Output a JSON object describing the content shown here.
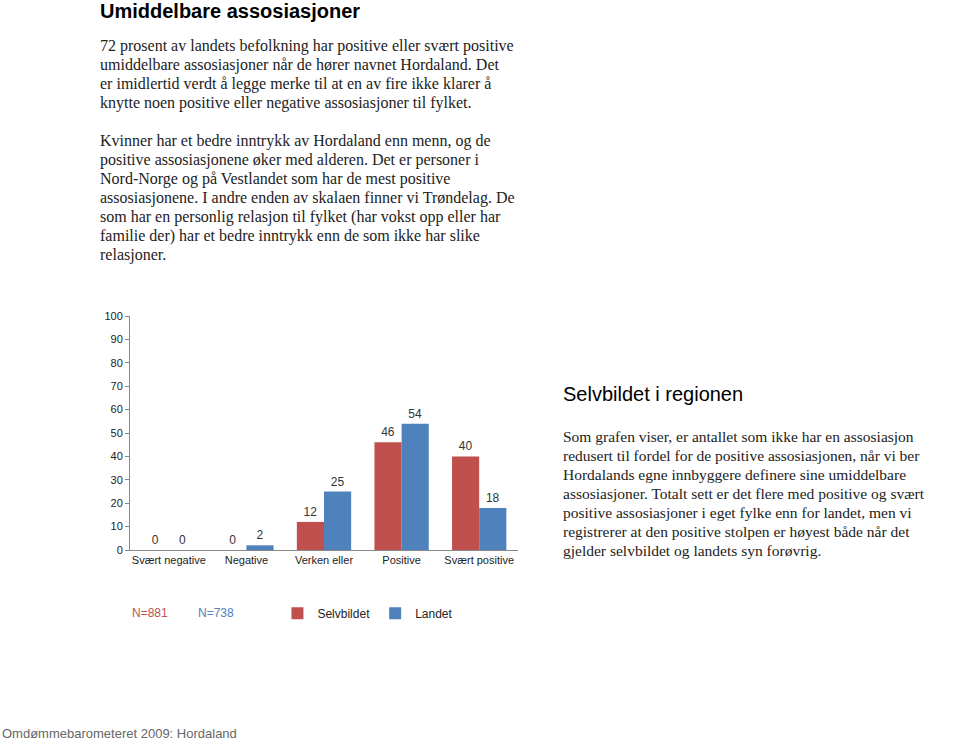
{
  "heading": "Umiddelbare assosiasjoner",
  "paragraphs": [
    "72 prosent av landets befolkning har positive eller svært positive umiddelbare assosiasjoner når de hører navnet Hordaland. Det er imidlertid verdt å legge merke til at en av fire ikke klarer å knytte noen positive eller negative assosiasjoner til fylket.",
    "Kvinner har et bedre inntrykk av Hordaland enn menn, og de positive assosiasjonene øker med alderen. Det er personer i Nord-Norge og på Vestlandet som har de mest positive assosiasjonene. I andre enden av skalaen finner vi Trøndelag. De som har en personlig relasjon til fylket (har vokst opp eller har familie der) har et bedre inntrykk enn de som ikke har slike relasjoner."
  ],
  "side_heading": "Selvbildet i regionen",
  "side_text": "Som grafen viser, er antallet som ikke har en assosiasjon redusert til fordel for de positive assosiasjonen, når vi ber Hordalands egne innbyggere definere sine umiddelbare assosiasjoner. Totalt sett er det flere med positive og svært positive assosiasjoner i eget fylke enn for landet, men vi registrerer at den positive stolpen er høyest både når det gjelder selvbildet og landets syn forøvrig.",
  "footer": "Omdømmebarometeret 2009: Hordaland",
  "chart_data": {
    "type": "bar",
    "categories": [
      "Svært negative",
      "Negative",
      "Verken eller",
      "Positive",
      "Svært positive"
    ],
    "series": [
      {
        "name": "Selvbildet",
        "color": "#c0504d",
        "values": [
          0,
          0,
          12,
          46,
          40
        ]
      },
      {
        "name": "Landet",
        "color": "#4f81bd",
        "values": [
          0,
          2,
          25,
          54,
          18
        ]
      }
    ],
    "annotations": [
      {
        "text": "N=881",
        "color": "#c0504d"
      },
      {
        "text": "N=738",
        "color": "#4f81bd"
      }
    ],
    "ylim": [
      0,
      100
    ],
    "yticks": [
      0,
      10,
      20,
      30,
      40,
      50,
      60,
      70,
      80,
      90,
      100
    ],
    "grid": false,
    "data_labels": true,
    "legend": "bottom"
  }
}
